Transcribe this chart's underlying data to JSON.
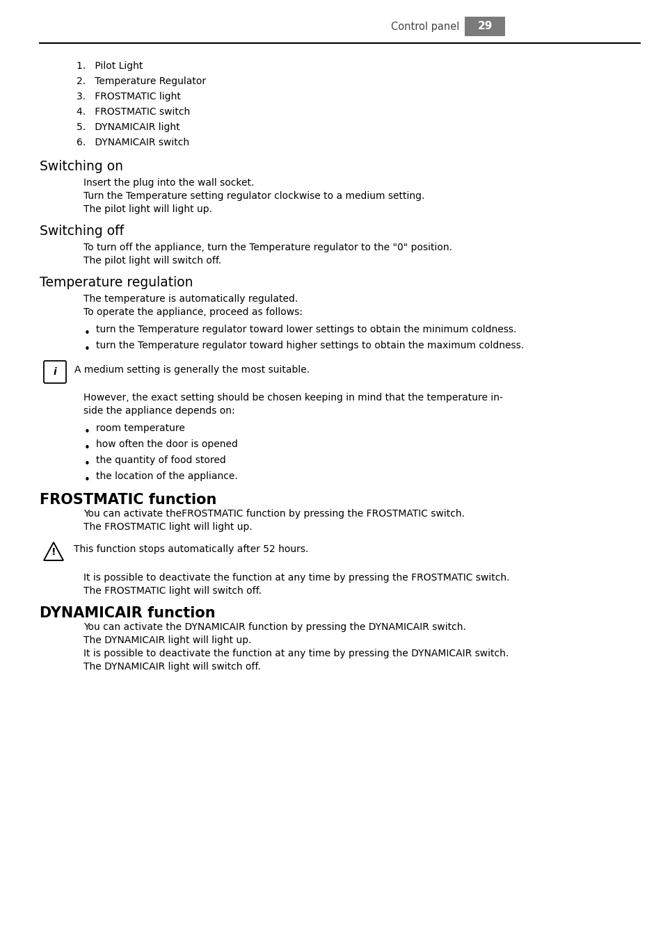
{
  "page_bg": "#ffffff",
  "text_color": "#000000",
  "header_text": "Control panel",
  "page_number": "29",
  "header_bg": "#7a7a7a",
  "font_family": "DejaVu Sans Condensed",
  "numbered_items": [
    "1.   Pilot Light",
    "2.   Temperature Regulator",
    "3.   FROSTMATIC light",
    "4.   FROSTMATIC switch",
    "5.   DYNAMICAIR light",
    "6.   DYNAMICAIR switch"
  ],
  "heading_switching_on": "Switching on",
  "switching_on_lines": [
    "Insert the plug into the wall socket.",
    "Turn the Temperature setting regulator clockwise to a medium setting.",
    "The pilot light will light up."
  ],
  "heading_switching_off": "Switching off",
  "switching_off_lines": [
    "To turn off the appliance, turn the Temperature regulator to the \"0\" position.",
    "The pilot light will switch off."
  ],
  "heading_temp_reg": "Temperature regulation",
  "temp_reg_lines": [
    "The temperature is automatically regulated.",
    "To operate the appliance, proceed as follows:"
  ],
  "temp_bullets": [
    "turn the Temperature regulator toward lower settings to obtain the minimum coldness.",
    "turn the Temperature regulator toward higher settings to obtain the maximum coldness."
  ],
  "info_text": "A medium setting is generally the most suitable.",
  "however_lines": [
    "However, the exact setting should be chosen keeping in mind that the temperature in-",
    "side the appliance depends on:"
  ],
  "depends_bullets": [
    "room temperature",
    "how often the door is opened",
    "the quantity of food stored",
    "the location of the appliance."
  ],
  "heading_frostmatic": "FROSTMATIC function",
  "frostmatic_lines": [
    "You can activate theFROSTMATIC function by pressing the FROSTMATIC switch.",
    "The FROSTMATIC light will light up."
  ],
  "warning_text": "This function stops automatically after 52 hours.",
  "frostmatic_lines2": [
    "It is possible to deactivate the function at any time by pressing the FROSTMATIC switch.",
    "The FROSTMATIC light will switch off."
  ],
  "heading_dynamicair": "DYNAMICAIR function",
  "dynamicair_lines": [
    "You can activate the DYNAMICAIR function by pressing the DYNAMICAIR switch.",
    "The DYNAMICAIR light will light up.",
    "It is possible to deactivate the function at any time by pressing the DYNAMICAIR switch.",
    "The DYNAMICAIR light will switch off."
  ]
}
